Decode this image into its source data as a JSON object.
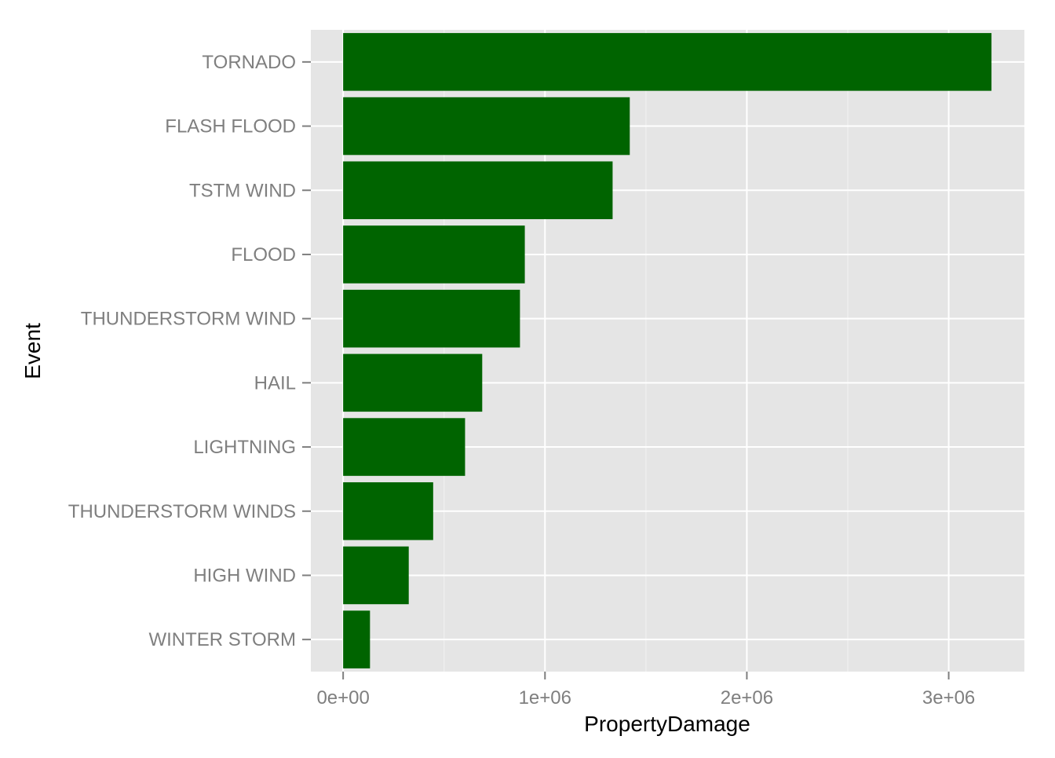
{
  "chart_data": {
    "type": "bar",
    "orientation": "horizontal",
    "categories": [
      "TORNADO",
      "FLASH FLOOD",
      "TSTM WIND",
      "FLOOD",
      "THUNDERSTORM WIND",
      "HAIL",
      "LIGHTNING",
      "THUNDERSTORM WINDS",
      "HIGH WIND",
      "WINTER STORM"
    ],
    "values": [
      3212000,
      1420000,
      1335000,
      900000,
      876000,
      689000,
      604000,
      446000,
      325000,
      133000
    ],
    "xlabel": "PropertyDamage",
    "ylabel": "Event",
    "xlim": [
      -160000,
      3375000
    ],
    "xticks": [
      0,
      1000000,
      2000000,
      3000000
    ],
    "xtick_labels": [
      "0e+00",
      "1e+06",
      "2e+06",
      "3e+06"
    ],
    "grid": true,
    "bar_color": "#006400",
    "panel_background": "#e5e5e5",
    "grid_color": "#ffffff"
  }
}
